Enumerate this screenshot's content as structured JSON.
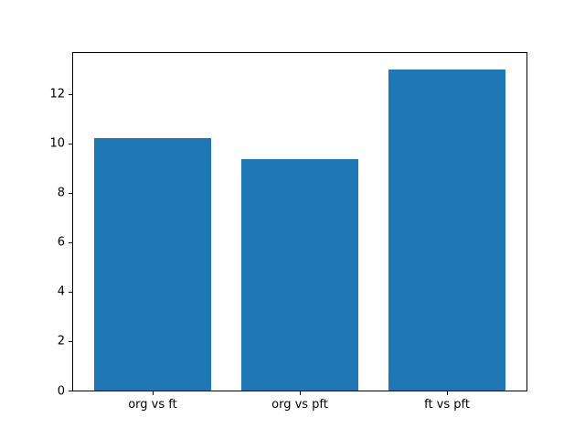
{
  "chart_data": {
    "type": "bar",
    "categories": [
      "org vs ft",
      "org vs pft",
      "ft vs pft"
    ],
    "values": [
      10.2,
      9.35,
      13.0
    ],
    "title": "",
    "xlabel": "",
    "ylabel": "",
    "ylim": [
      0,
      13.65
    ],
    "xlim": [
      -0.54,
      2.54
    ],
    "yticks": [
      0,
      2,
      4,
      6,
      8,
      10,
      12
    ],
    "bar_width": 0.8,
    "bar_color": "#1f77b4",
    "axis_color": "#000000",
    "background_color": "#ffffff",
    "grid": false,
    "legend": null
  }
}
